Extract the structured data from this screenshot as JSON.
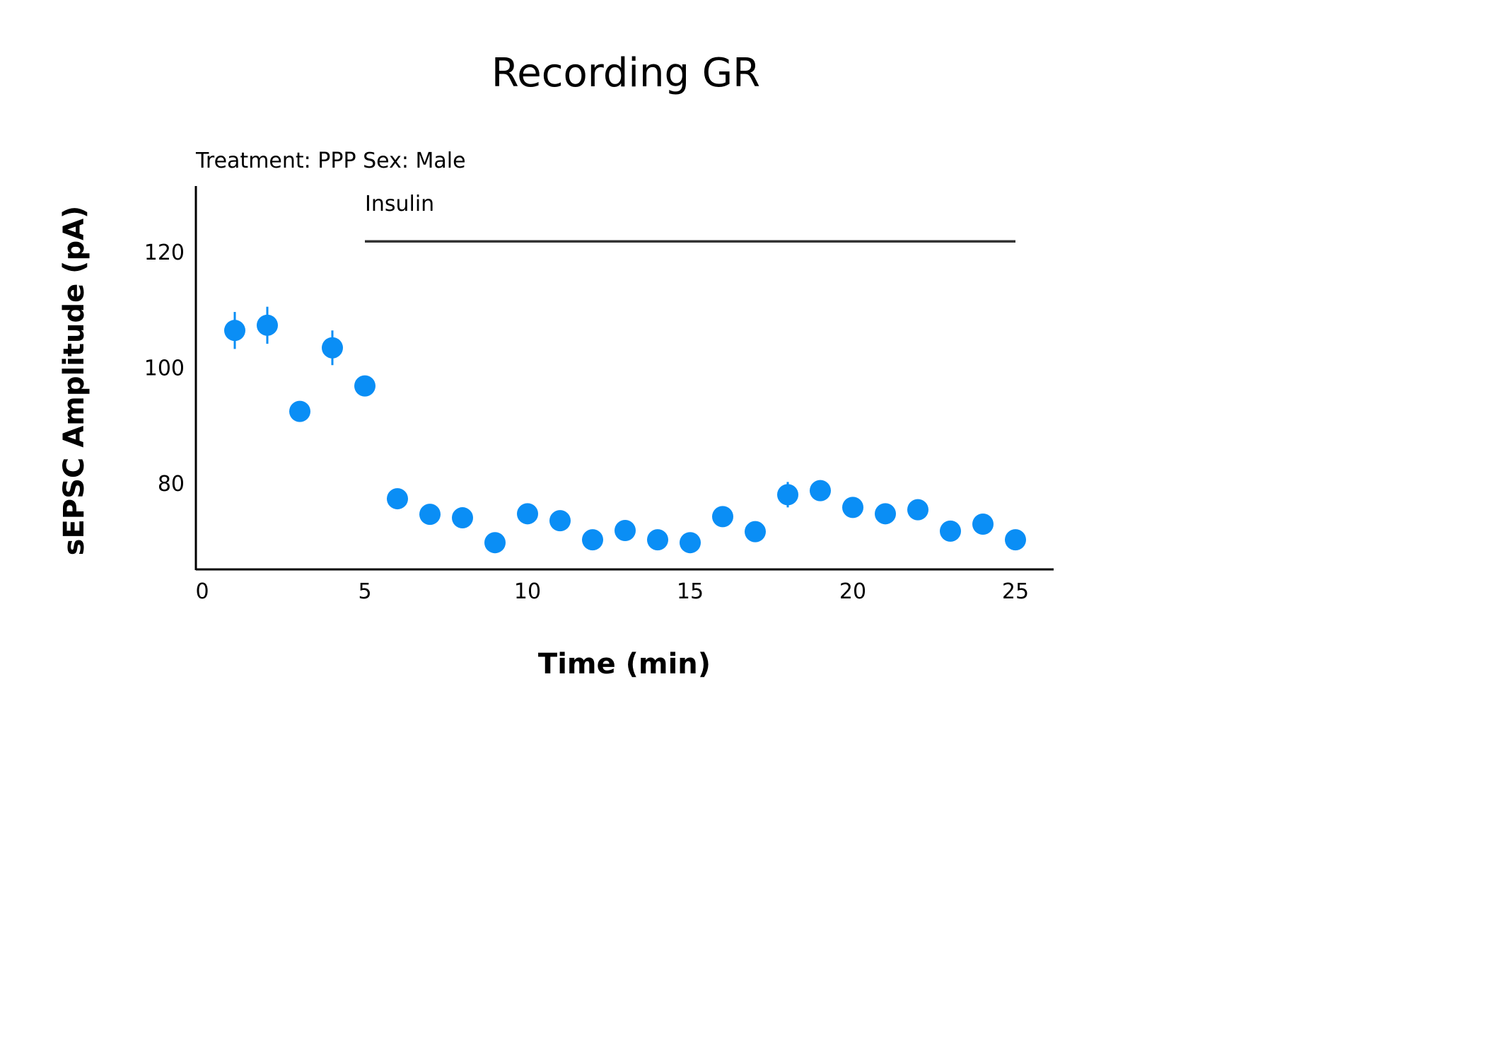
{
  "chart_data": {
    "type": "scatter",
    "title": "Recording GR",
    "subtitle": "Treatment: PPP  Sex: Male",
    "xlabel": "Time (min)",
    "ylabel": "sEPSC Amplitude (pA)",
    "xlim": [
      0,
      26.5
    ],
    "ylim": [
      66,
      132
    ],
    "x_ticks": [
      0,
      5,
      10,
      15,
      20,
      25
    ],
    "y_ticks": [
      80,
      100,
      120
    ],
    "grid": false,
    "marker_color": "#0A8EF5",
    "axis_color": "#000000",
    "annotation": {
      "label": "Insulin",
      "x_start": 5,
      "x_end": 25,
      "y": 121.8,
      "color": "#333333"
    },
    "series": [
      {
        "x": [
          1,
          2,
          3,
          4,
          5,
          6,
          7,
          8,
          9,
          10,
          11,
          12,
          13,
          14,
          15,
          16,
          17,
          18,
          19,
          20,
          21,
          22,
          23,
          24,
          25
        ],
        "y": [
          106.4,
          107.3,
          92.4,
          103.4,
          96.8,
          77.3,
          74.6,
          74.0,
          69.7,
          74.7,
          73.5,
          70.2,
          71.8,
          70.2,
          69.7,
          74.2,
          71.6,
          78.0,
          78.7,
          75.8,
          74.7,
          75.4,
          71.7,
          72.9,
          70.2
        ],
        "error": [
          3.2,
          3.2,
          1.0,
          3.0,
          0.8,
          0.8,
          0.7,
          0.6,
          0.7,
          0.8,
          0.6,
          0.6,
          0.6,
          0.5,
          0.6,
          0.9,
          0.6,
          2.2,
          1.8,
          1.2,
          1.5,
          1.8,
          0.6,
          0.6,
          0.9
        ]
      }
    ]
  }
}
